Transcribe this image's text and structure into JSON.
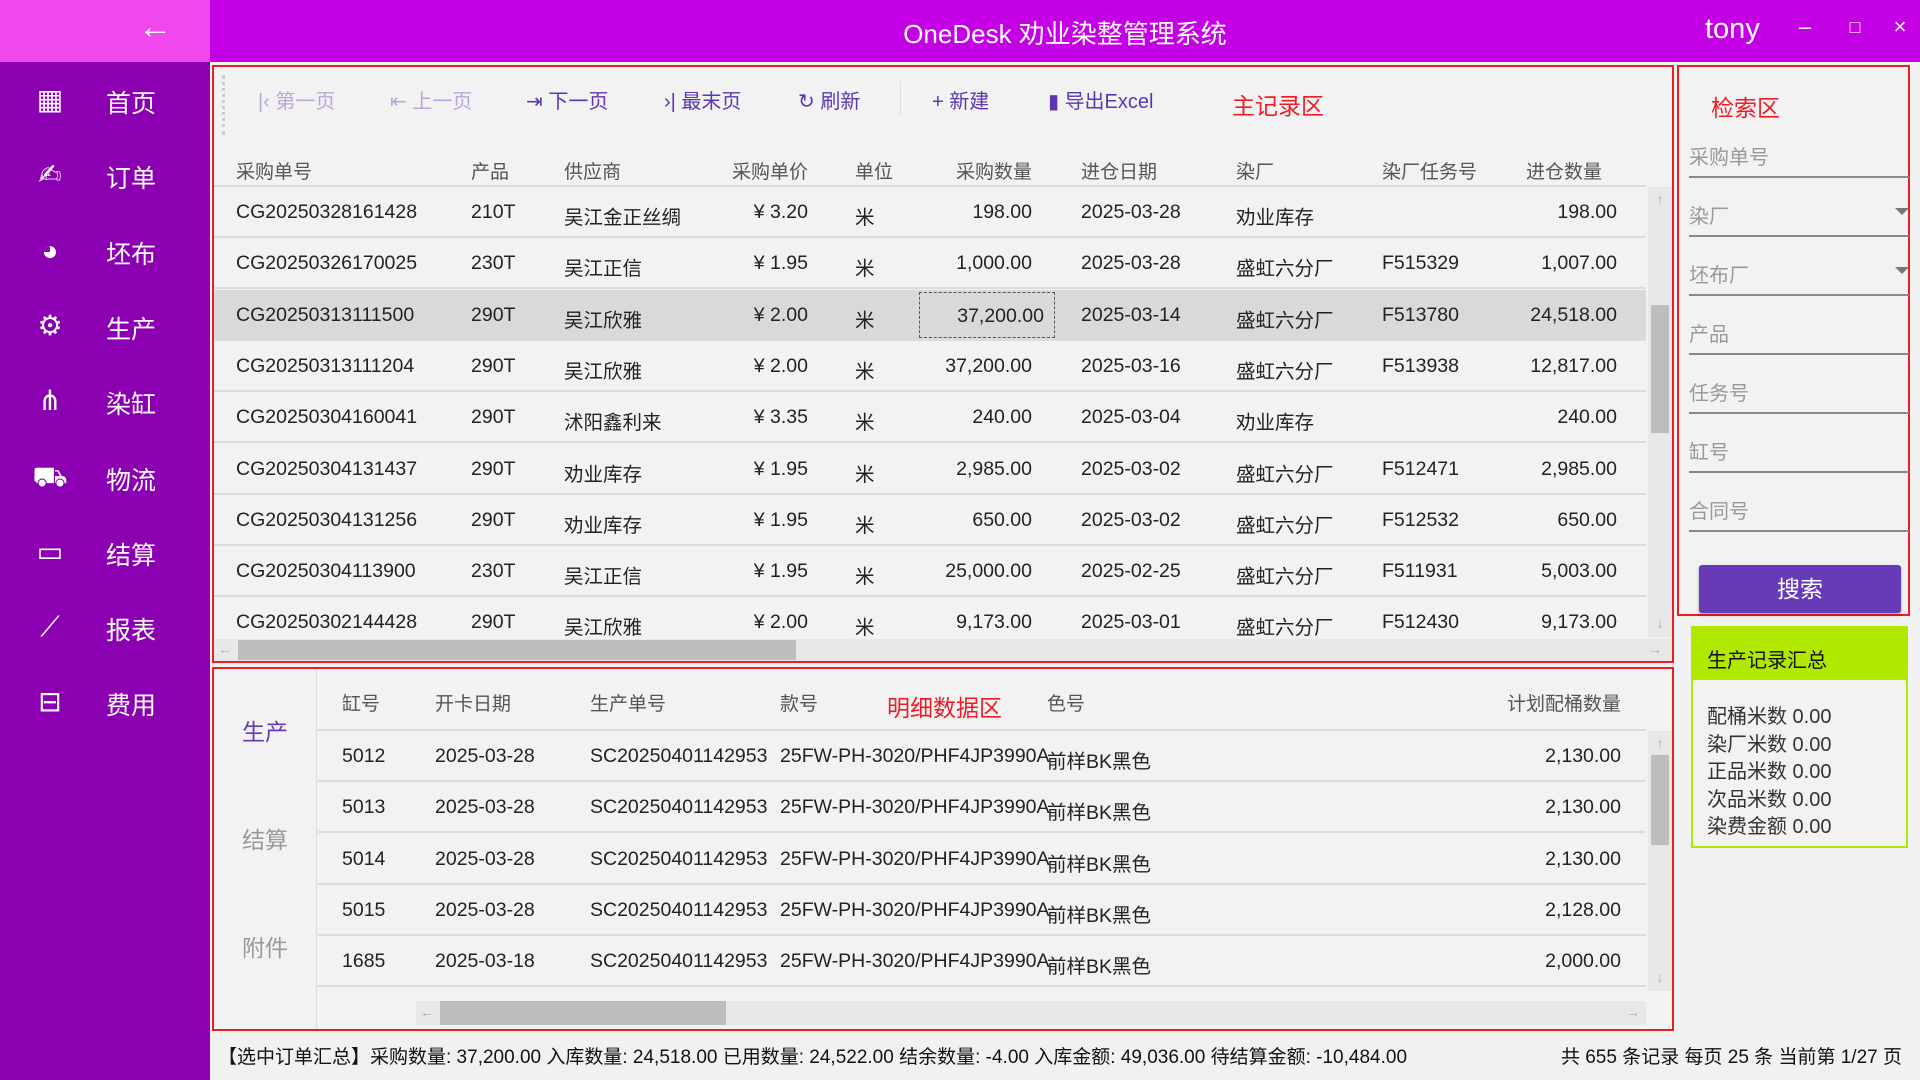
{
  "app": {
    "title": "OneDesk 劝业染整管理系统",
    "user": "tony",
    "min": "–",
    "max": "□",
    "close": "×",
    "back": "←"
  },
  "sidebar": {
    "items": [
      {
        "label": "首页",
        "icon": "dashboard-icon",
        "glyph": "▦"
      },
      {
        "label": "订单",
        "icon": "handshake-icon",
        "glyph": "✍"
      },
      {
        "label": "坯布",
        "icon": "fabric-roll-icon",
        "glyph": "◕"
      },
      {
        "label": "生产",
        "icon": "gears-icon",
        "glyph": "⚙"
      },
      {
        "label": "染缸",
        "icon": "network-icon",
        "glyph": "⋔"
      },
      {
        "label": "物流",
        "icon": "truck-icon",
        "glyph": "⛟"
      },
      {
        "label": "结算",
        "icon": "credit-card-icon",
        "glyph": "▭"
      },
      {
        "label": "报表",
        "icon": "chart-line-icon",
        "glyph": "⟋"
      },
      {
        "label": "费用",
        "icon": "briefcase-icon",
        "glyph": "⊟"
      }
    ]
  },
  "toolbar": {
    "first": "第一页",
    "prev": "上一页",
    "next": "下一页",
    "last": "最末页",
    "refresh": "刷新",
    "new": "新建",
    "export": "导出Excel",
    "region_label": "主记录区"
  },
  "main_table": {
    "columns": [
      "采购单号",
      "产品",
      "供应商",
      "采购单价",
      "单位",
      "采购数量",
      "进仓日期",
      "染厂",
      "染厂任务号",
      "进仓数量"
    ],
    "selected_index": 2,
    "rows": [
      [
        "CG20250328161428",
        "210T",
        "吴江金正丝绸",
        "¥ 3.20",
        "米",
        "198.00",
        "2025-03-28",
        "劝业库存",
        "",
        "198.00"
      ],
      [
        "CG20250326170025",
        "230T",
        "吴江正信",
        "¥ 1.95",
        "米",
        "1,000.00",
        "2025-03-28",
        "盛虹六分厂",
        "F515329",
        "1,007.00"
      ],
      [
        "CG20250313111500",
        "290T",
        "吴江欣雅",
        "¥ 2.00",
        "米",
        "37,200.00",
        "2025-03-14",
        "盛虹六分厂",
        "F513780",
        "24,518.00"
      ],
      [
        "CG20250313111204",
        "290T",
        "吴江欣雅",
        "¥ 2.00",
        "米",
        "37,200.00",
        "2025-03-16",
        "盛虹六分厂",
        "F513938",
        "12,817.00"
      ],
      [
        "CG20250304160041",
        "290T",
        "沭阳鑫利来",
        "¥ 3.35",
        "米",
        "240.00",
        "2025-03-04",
        "劝业库存",
        "",
        "240.00"
      ],
      [
        "CG20250304131437",
        "290T",
        "劝业库存",
        "¥ 1.95",
        "米",
        "2,985.00",
        "2025-03-02",
        "盛虹六分厂",
        "F512471",
        "2,985.00"
      ],
      [
        "CG20250304131256",
        "290T",
        "劝业库存",
        "¥ 1.95",
        "米",
        "650.00",
        "2025-03-02",
        "盛虹六分厂",
        "F512532",
        "650.00"
      ],
      [
        "CG20250304113900",
        "230T",
        "吴江正信",
        "¥ 1.95",
        "米",
        "25,000.00",
        "2025-02-25",
        "盛虹六分厂",
        "F511931",
        "5,003.00"
      ],
      [
        "CG20250302144428",
        "290T",
        "吴江欣雅",
        "¥ 2.00",
        "米",
        "9,173.00",
        "2025-03-01",
        "盛虹六分厂",
        "F512430",
        "9,173.00"
      ]
    ]
  },
  "detail": {
    "tabs": [
      "生产",
      "结算",
      "附件"
    ],
    "active_tab": 0,
    "region_label": "明细数据区",
    "columns": [
      "缸号",
      "开卡日期",
      "生产单号",
      "款号",
      "色号",
      "计划配桶数量"
    ],
    "rows": [
      [
        "5012",
        "2025-03-28",
        "SC20250401142953",
        "25FW-PH-3020/PHF4JP3990A",
        "前样BK黑色",
        "2,130.00"
      ],
      [
        "5013",
        "2025-03-28",
        "SC20250401142953",
        "25FW-PH-3020/PHF4JP3990A",
        "前样BK黑色",
        "2,130.00"
      ],
      [
        "5014",
        "2025-03-28",
        "SC20250401142953",
        "25FW-PH-3020/PHF4JP3990A",
        "前样BK黑色",
        "2,130.00"
      ],
      [
        "5015",
        "2025-03-28",
        "SC20250401142953",
        "25FW-PH-3020/PHF4JP3990A",
        "前样BK黑色",
        "2,128.00"
      ],
      [
        "1685",
        "2025-03-18",
        "SC20250401142953",
        "25FW-PH-3020/PHF4JP3990A",
        "前样BK黑色",
        "2,000.00"
      ]
    ]
  },
  "search": {
    "region_label": "检索区",
    "fields": [
      {
        "placeholder": "采购单号",
        "dropdown": false
      },
      {
        "placeholder": "染厂",
        "dropdown": true
      },
      {
        "placeholder": "坯布厂",
        "dropdown": true
      },
      {
        "placeholder": "产品",
        "dropdown": false
      },
      {
        "placeholder": "任务号",
        "dropdown": false
      },
      {
        "placeholder": "缸号",
        "dropdown": false
      },
      {
        "placeholder": "合同号",
        "dropdown": false
      }
    ],
    "button": "搜索"
  },
  "summary": {
    "title": "生产记录汇总",
    "lines": [
      "配桶米数 0.00",
      "染厂米数 0.00",
      "正品米数 0.00",
      "次品米数 0.00",
      "染费金额 0.00"
    ]
  },
  "status": {
    "text": "【选中订单汇总】采购数量: 37,200.00 入库数量: 24,518.00 已用数量: 24,522.00 结余数量: -4.00 入库金额: 49,036.00 待结算金额: -10,484.00",
    "pager": "共 655 条记录 每页 25 条 当前第 1/27 页"
  },
  "colors": {
    "titlebar": "#c400e4",
    "sidebar": "#8b00b0",
    "accent": "#673ab7",
    "summary": "#b0e800",
    "region_border": "#ee1c25"
  }
}
